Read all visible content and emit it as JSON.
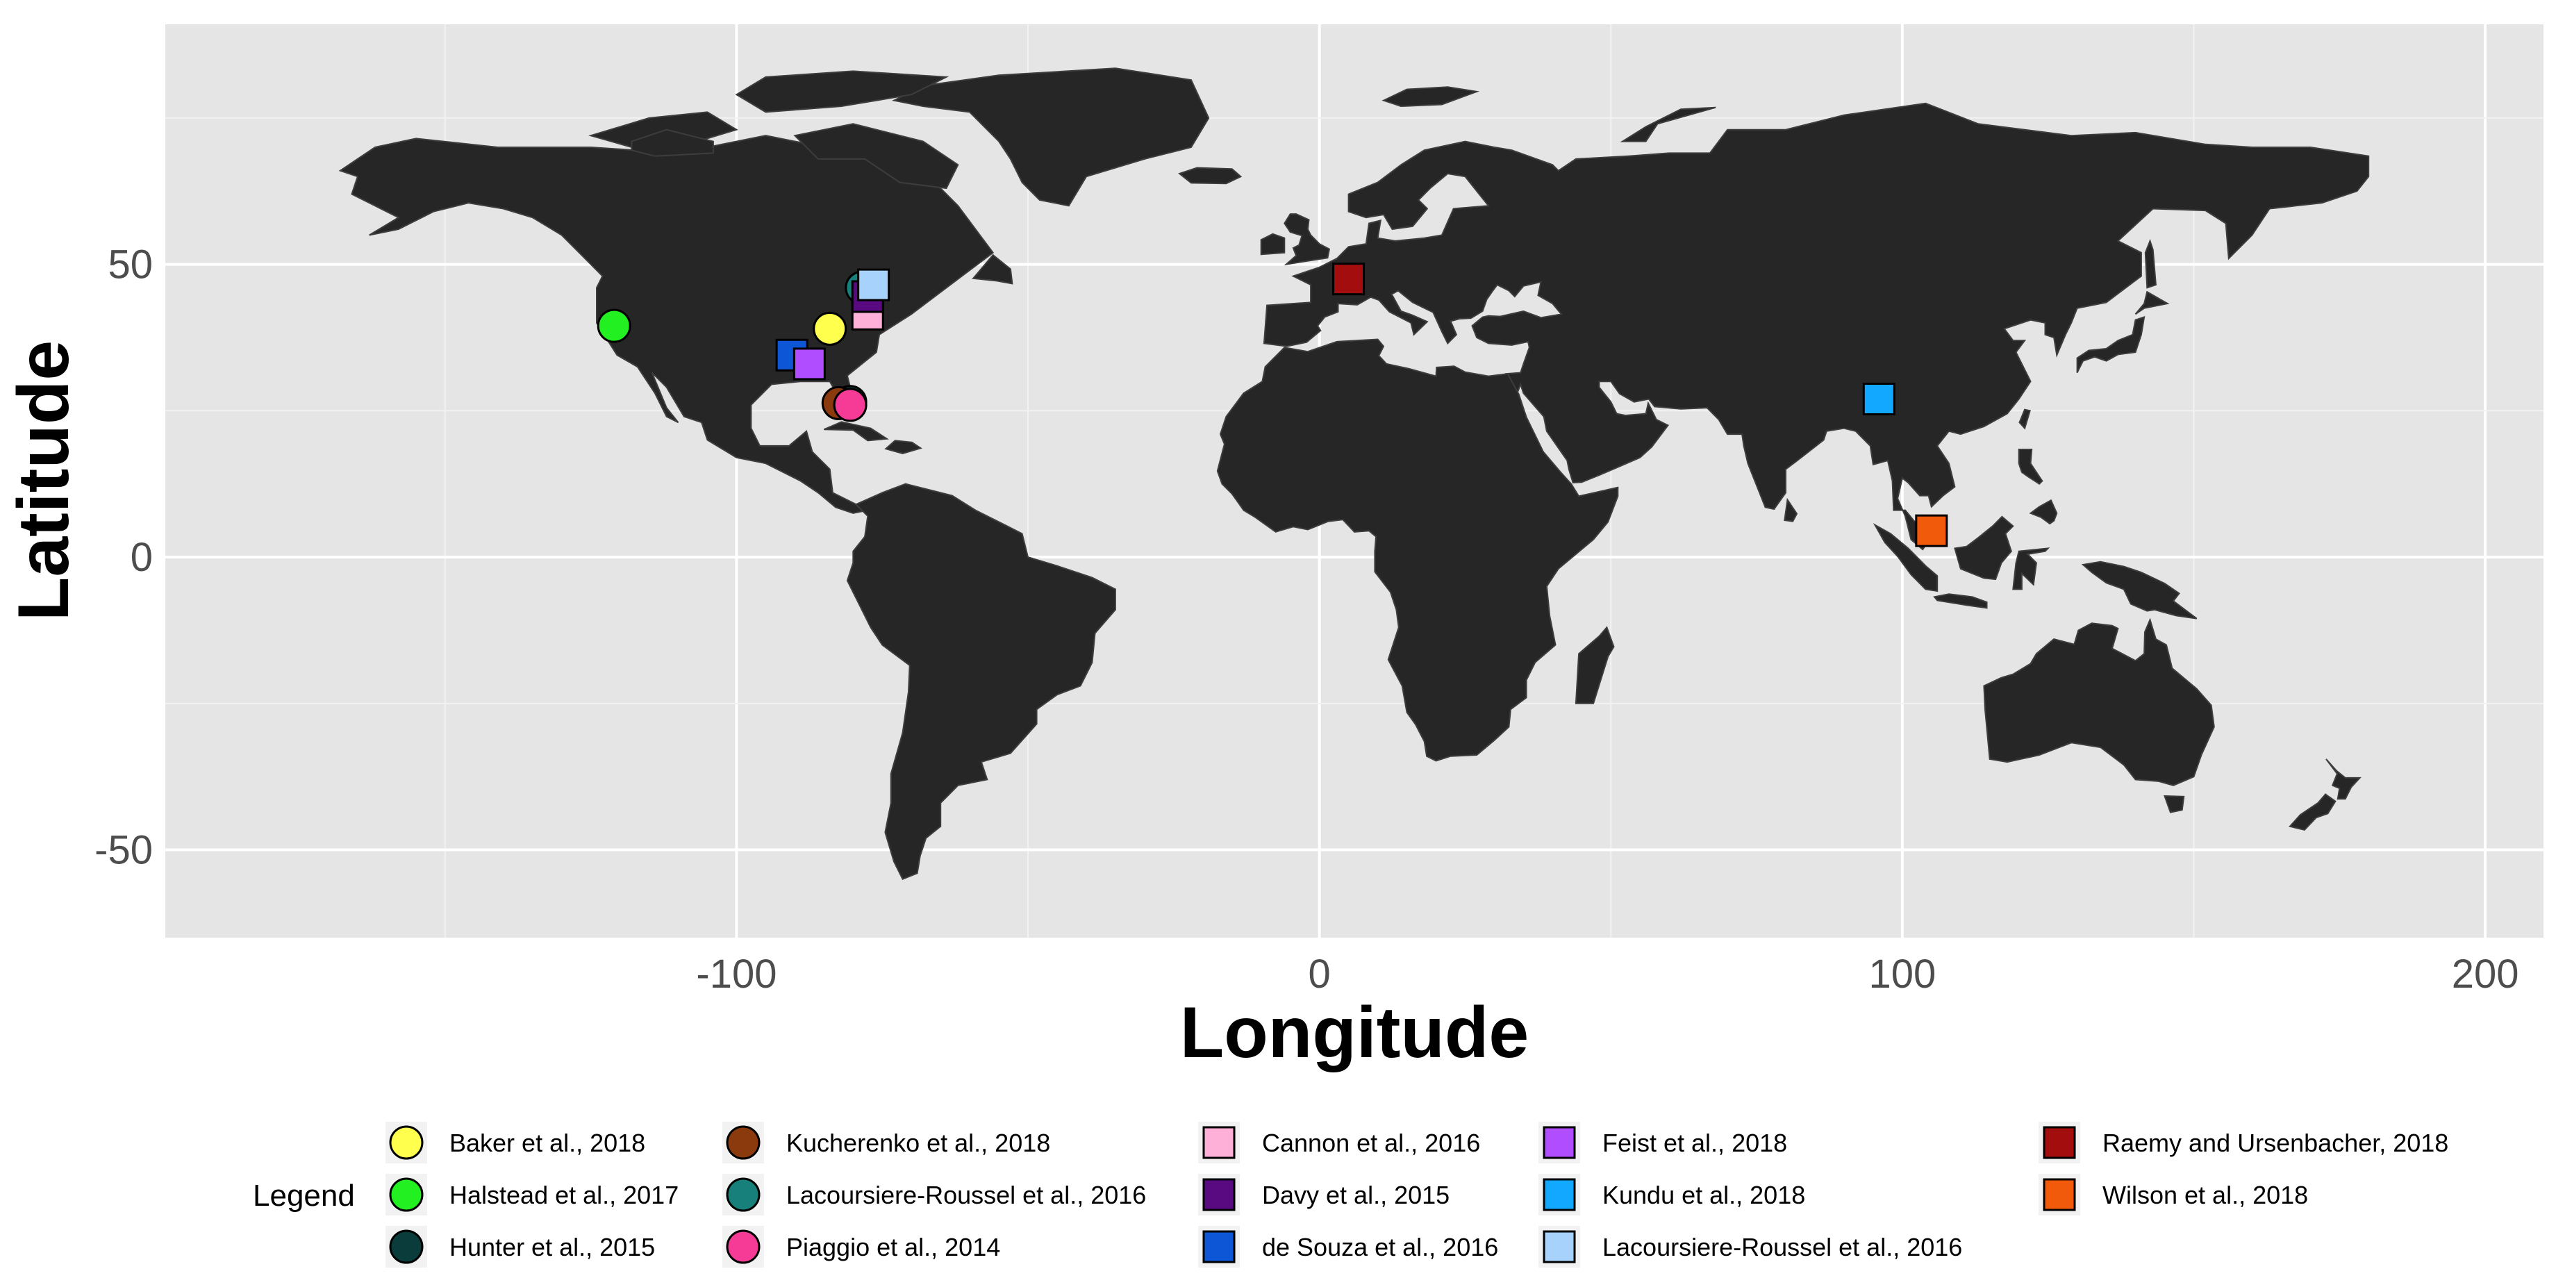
{
  "chart_data": {
    "type": "scatter",
    "title": "",
    "xlabel": "Longitude",
    "ylabel": "Latitude",
    "xlim": [
      -198,
      210
    ],
    "ylim": [
      -65,
      91
    ],
    "x_ticks": [
      -100,
      0,
      100,
      200
    ],
    "y_ticks": [
      -50,
      0,
      50
    ],
    "grid": true,
    "background": "#e5e5e5",
    "land_color": "#262626",
    "legend_title": "Legend",
    "legend_position": "bottom",
    "series": [
      {
        "name": "Baker et al., 2018",
        "shape": "circle",
        "color": "#ffff4d",
        "points": [
          [
            -84,
            39
          ]
        ]
      },
      {
        "name": "Halstead et al., 2017",
        "shape": "circle",
        "color": "#22f020",
        "points": [
          [
            -121,
            39.5
          ]
        ]
      },
      {
        "name": "Hunter et al., 2015",
        "shape": "circle",
        "color": "#0b3c3c",
        "points": [
          [
            -80.5,
            26.5
          ]
        ]
      },
      {
        "name": "Kucherenko et al., 2018",
        "shape": "circle",
        "color": "#8b3a0e",
        "points": [
          [
            -82.5,
            26.3
          ]
        ]
      },
      {
        "name": "Lacoursiere-Roussel et al., 2016",
        "shape": "circle",
        "color": "#17807b",
        "points": [
          [
            -78.5,
            46
          ]
        ]
      },
      {
        "name": "Piaggio et al., 2014",
        "shape": "circle",
        "color": "#f53b96",
        "points": [
          [
            -80.5,
            26
          ]
        ]
      },
      {
        "name": "Cannon et al., 2016",
        "shape": "square",
        "color": "#ffb0d8",
        "points": [
          [
            -77.5,
            41.5
          ]
        ]
      },
      {
        "name": "Davy et al., 2015",
        "shape": "square",
        "color": "#5a0a80",
        "points": [
          [
            -77.5,
            44.5
          ]
        ]
      },
      {
        "name": "de Souza et al., 2016",
        "shape": "square",
        "color": "#0d57d6",
        "points": [
          [
            -90.5,
            34.5
          ]
        ]
      },
      {
        "name": "Feist et al., 2018",
        "shape": "square",
        "color": "#b04dff",
        "points": [
          [
            -87.5,
            33
          ]
        ]
      },
      {
        "name": "Kundu et al., 2018",
        "shape": "square",
        "color": "#12a8ff",
        "points": [
          [
            96,
            27
          ]
        ]
      },
      {
        "name": "Lacoursiere-Roussel et al., 2016",
        "shape": "square",
        "color": "#a6d2fb",
        "points": [
          [
            -76.5,
            46.5
          ]
        ]
      },
      {
        "name": "Raemy and Ursenbacher, 2018",
        "shape": "square",
        "color": "#a30d0d",
        "points": [
          [
            5,
            47.5
          ]
        ]
      },
      {
        "name": "Wilson et al., 2018",
        "shape": "square",
        "color": "#f05a0a",
        "points": [
          [
            105,
            4.5
          ]
        ]
      }
    ]
  }
}
